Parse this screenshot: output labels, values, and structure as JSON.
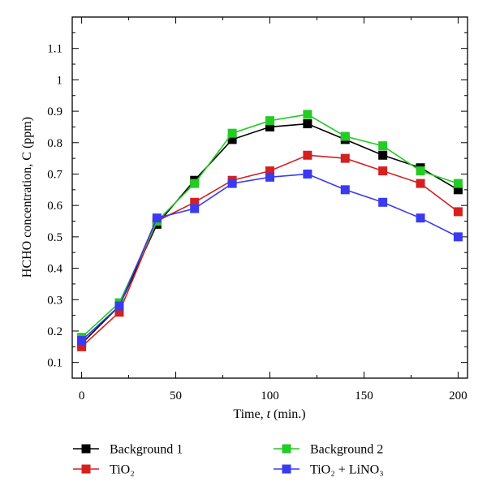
{
  "chart_data": {
    "type": "line",
    "xlabel": {
      "prefix": "Time, ",
      "var": "t",
      "suffix": " (min.)"
    },
    "ylabel": "HCHO concentration, C (ppm)",
    "xlim": [
      -5,
      205
    ],
    "ylim": [
      0.05,
      1.2
    ],
    "xticks": [
      0,
      50,
      100,
      150,
      200
    ],
    "xticks_minor_step": 25,
    "yticks": [
      0.1,
      0.2,
      0.3,
      0.4,
      0.5,
      0.6,
      0.7,
      0.8,
      0.9,
      1,
      1.1
    ],
    "yticks_minor_step": 0.05,
    "grid": false,
    "legend_position": "below",
    "x": [
      0,
      20,
      40,
      60,
      80,
      100,
      120,
      140,
      160,
      180,
      200
    ],
    "series": [
      {
        "name": "Background 1",
        "color": "#000000",
        "values": [
          0.16,
          0.28,
          0.54,
          0.68,
          0.81,
          0.85,
          0.86,
          0.81,
          0.76,
          0.72,
          0.65
        ]
      },
      {
        "name": "TiO₂",
        "color": "#d42020",
        "values": [
          0.15,
          0.26,
          0.55,
          0.61,
          0.68,
          0.71,
          0.76,
          0.75,
          0.71,
          0.67,
          0.58
        ]
      },
      {
        "name": "Background 2",
        "color": "#22cc22",
        "values": [
          0.18,
          0.29,
          0.55,
          0.67,
          0.83,
          0.87,
          0.89,
          0.82,
          0.79,
          0.71,
          0.67
        ]
      },
      {
        "name": "TiO₂ + LiNO₃",
        "color": "#3a3af0",
        "values": [
          0.17,
          0.28,
          0.56,
          0.59,
          0.67,
          0.69,
          0.7,
          0.65,
          0.61,
          0.56,
          0.5
        ]
      }
    ]
  }
}
